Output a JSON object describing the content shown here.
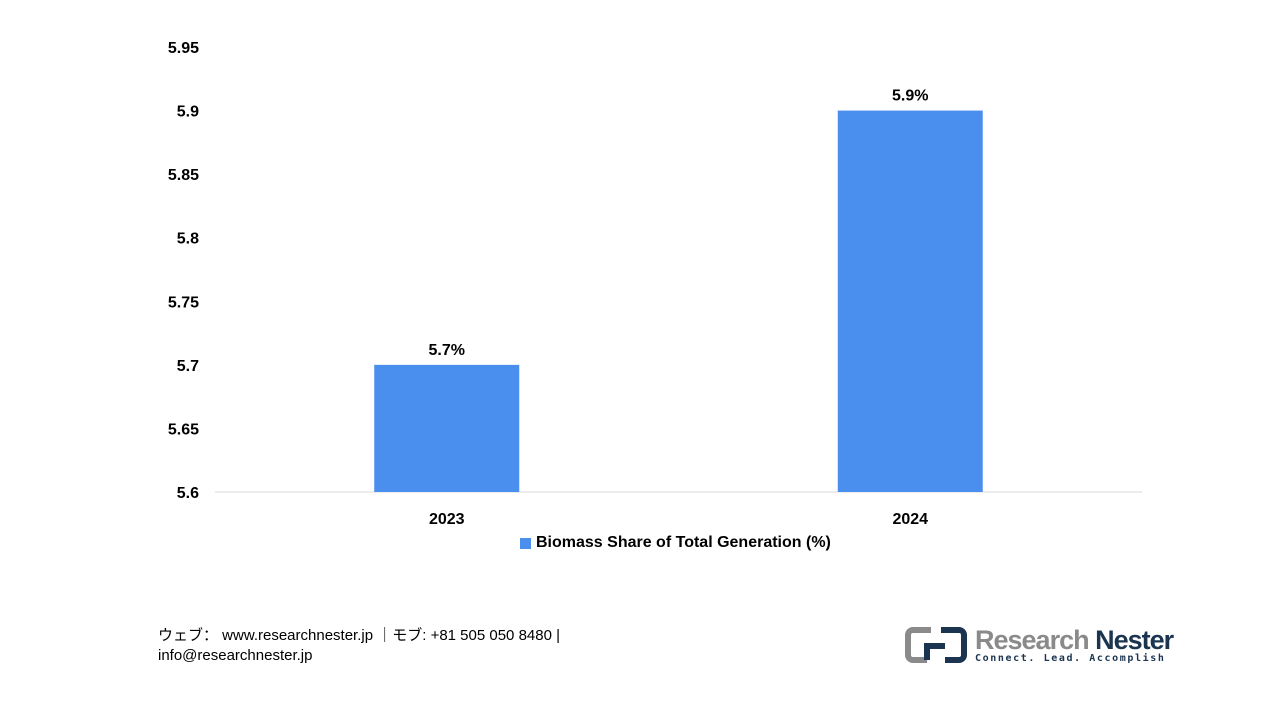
{
  "chart_data": {
    "type": "bar",
    "categories": [
      "2023",
      "2024"
    ],
    "series": [
      {
        "name": "Biomass Share of Total Generation (%)",
        "values": [
          5.7,
          5.9
        ],
        "color": "#4a8eee"
      }
    ],
    "data_labels": [
      "5.7%",
      "5.9%"
    ],
    "ylim": [
      5.6,
      5.95
    ],
    "yticks": [
      "5.6",
      "5.65",
      "5.7",
      "5.75",
      "5.8",
      "5.85",
      "5.9",
      "5.95"
    ],
    "grid": false,
    "legend_placement": "bottom"
  },
  "footer": {
    "line1": "ウェブ： www.researchnester.jp ｜モブ: +81 505 050 8480 |",
    "line2": "info@researchnester.jp"
  },
  "logo": {
    "name_a": "Research",
    "name_b": "Nester",
    "tagline": "Connect. Lead. Accomplish"
  }
}
